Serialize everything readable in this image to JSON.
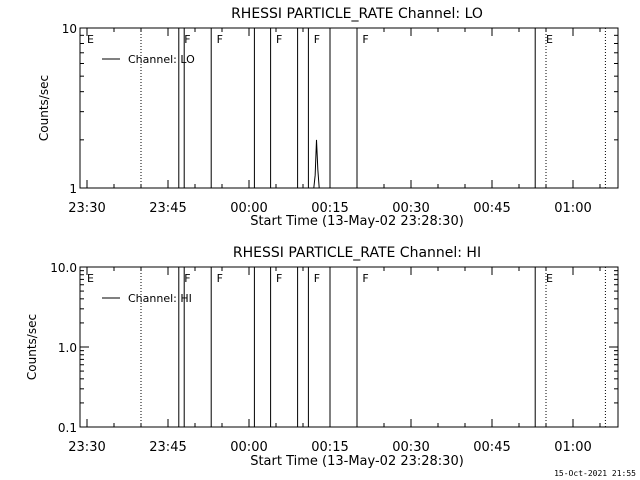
{
  "footer": "15-Oct-2021 21:55",
  "chart_data": [
    {
      "type": "line",
      "title": "RHESSI PARTICLE_RATE Channel: LO",
      "xlabel": "Start Time (13-May-02 23:28:30)",
      "ylabel": "Counts/sec",
      "yscale": "log",
      "ylim": [
        1,
        10
      ],
      "y_ticks": [
        1,
        10
      ],
      "y_tick_labels": [
        "1",
        "10"
      ],
      "x_ticks": [
        "23:30",
        "23:45",
        "00:00",
        "00:15",
        "00:30",
        "00:45",
        "01:00"
      ],
      "legend": {
        "entries": [
          "Channel: LO"
        ],
        "placement": "top-left"
      },
      "series": [
        {
          "name": "Channel: LO",
          "x": [
            "00:12:00",
            "00:12:15",
            "00:12:30",
            "00:12:45",
            "00:13:00"
          ],
          "values": [
            1,
            1.2,
            2.0,
            1.3,
            1
          ]
        }
      ],
      "solid_markers": [
        "23:47",
        "23:48",
        "23:53",
        "00:01",
        "00:04",
        "00:09",
        "00:11",
        "00:15",
        "00:20",
        "00:53"
      ],
      "dotted_markers": [
        "23:40",
        "00:55",
        "01:06"
      ],
      "flag_labels": [
        {
          "time": "23:30",
          "label": "E"
        },
        {
          "time": "23:48",
          "label": "F"
        },
        {
          "time": "23:54",
          "label": "F"
        },
        {
          "time": "00:05",
          "label": "F"
        },
        {
          "time": "00:12",
          "label": "F"
        },
        {
          "time": "00:21",
          "label": "F"
        },
        {
          "time": "00:55",
          "label": "E"
        }
      ]
    },
    {
      "type": "line",
      "title": "RHESSI PARTICLE_RATE Channel: HI",
      "xlabel": "Start Time (13-May-02 23:28:30)",
      "ylabel": "Counts/sec",
      "yscale": "log",
      "ylim": [
        0.1,
        10
      ],
      "y_ticks": [
        0.1,
        1,
        10
      ],
      "y_tick_labels": [
        "0.1",
        "1.0",
        "10.0"
      ],
      "x_ticks": [
        "23:30",
        "23:45",
        "00:00",
        "00:15",
        "00:30",
        "00:45",
        "01:00"
      ],
      "legend": {
        "entries": [
          "Channel: HI"
        ],
        "placement": "top-left"
      },
      "series": [
        {
          "name": "Channel: HI",
          "x": [],
          "values": []
        }
      ],
      "solid_markers": [
        "23:47",
        "23:48",
        "23:53",
        "00:01",
        "00:04",
        "00:09",
        "00:11",
        "00:15",
        "00:20",
        "00:53"
      ],
      "dotted_markers": [
        "23:40",
        "00:55",
        "01:06"
      ],
      "flag_labels": [
        {
          "time": "23:30",
          "label": "E"
        },
        {
          "time": "23:48",
          "label": "F"
        },
        {
          "time": "23:54",
          "label": "F"
        },
        {
          "time": "00:05",
          "label": "F"
        },
        {
          "time": "00:12",
          "label": "F"
        },
        {
          "time": "00:21",
          "label": "F"
        },
        {
          "time": "00:55",
          "label": "E"
        }
      ]
    }
  ]
}
